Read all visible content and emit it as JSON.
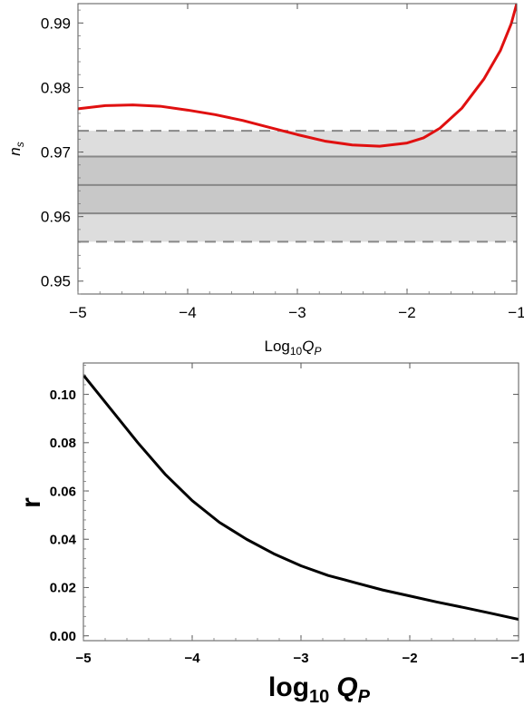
{
  "chart_data": [
    {
      "type": "line",
      "xlabel_prefix": "Log",
      "xlabel_sub": "10",
      "xlabel_var": "Q",
      "xlabel_var_sub": "P",
      "ylabel_var": "n",
      "ylabel_sub": "s",
      "xlim": [
        -5,
        -1
      ],
      "ylim": [
        0.948,
        0.993
      ],
      "xticks": [
        -5,
        -4,
        -3,
        -2,
        -1
      ],
      "xtick_labels": [
        "−5",
        "−4",
        "−3",
        "−2",
        "−1"
      ],
      "yticks": [
        0.95,
        0.96,
        0.97,
        0.98,
        0.99
      ],
      "ytick_labels": [
        "0.95",
        "0.96",
        "0.97",
        "0.98",
        "0.99"
      ],
      "bands": {
        "outer": [
          0.9561,
          0.9733
        ],
        "inner": [
          0.9605,
          0.9693
        ],
        "center": 0.9649,
        "outer_color": "#dddddd",
        "inner_color": "#c8c8c8",
        "line_color": "#888888"
      },
      "series": [
        {
          "color": "#e01010",
          "x": [
            -5.0,
            -4.75,
            -4.5,
            -4.25,
            -4.0,
            -3.75,
            -3.5,
            -3.25,
            -3.0,
            -2.75,
            -2.5,
            -2.25,
            -2.0,
            -1.85,
            -1.7,
            -1.5,
            -1.3,
            -1.15,
            -1.05,
            -1.0
          ],
          "y": [
            0.9767,
            0.9772,
            0.9773,
            0.9771,
            0.9765,
            0.9758,
            0.9749,
            0.9738,
            0.9727,
            0.9717,
            0.9711,
            0.9709,
            0.9714,
            0.9722,
            0.9737,
            0.9768,
            0.9813,
            0.9857,
            0.9899,
            0.993
          ]
        }
      ]
    },
    {
      "type": "line",
      "xlabel_prefix": "log",
      "xlabel_sub": "10",
      "xlabel_var": "Q",
      "xlabel_var_sub": "P",
      "ylabel": "r",
      "xlim": [
        -5,
        -1
      ],
      "ylim": [
        -0.002,
        0.113
      ],
      "xticks": [
        -5,
        -4,
        -3,
        -2,
        -1
      ],
      "xtick_labels": [
        "−5",
        "−4",
        "−3",
        "−2",
        "−1"
      ],
      "yticks": [
        0.0,
        0.02,
        0.04,
        0.06,
        0.08,
        0.1
      ],
      "ytick_labels": [
        "0.00",
        "0.02",
        "0.04",
        "0.06",
        "0.08",
        "0.10"
      ],
      "series": [
        {
          "color": "#000000",
          "x": [
            -5.0,
            -4.75,
            -4.5,
            -4.25,
            -4.0,
            -3.75,
            -3.5,
            -3.25,
            -3.0,
            -2.75,
            -2.5,
            -2.25,
            -2.0,
            -1.75,
            -1.5,
            -1.25,
            -1.0
          ],
          "y": [
            0.108,
            0.094,
            0.08,
            0.067,
            0.056,
            0.047,
            0.04,
            0.034,
            0.029,
            0.025,
            0.022,
            0.019,
            0.0165,
            0.014,
            0.0117,
            0.0093,
            0.0068
          ]
        }
      ]
    }
  ]
}
